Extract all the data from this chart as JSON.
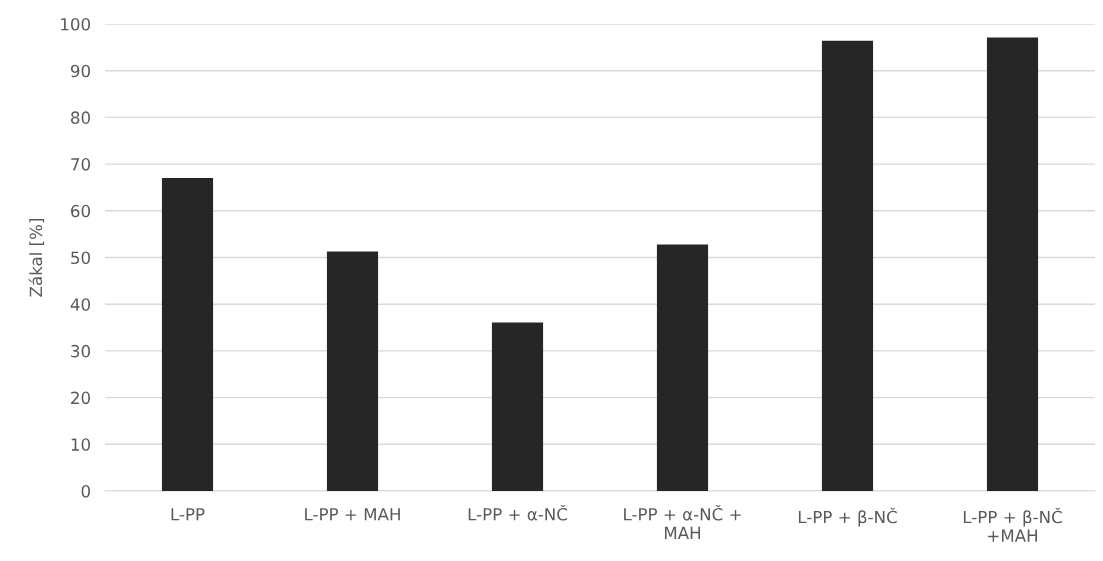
{
  "chart_data": {
    "type": "bar",
    "ylabel": "Zákal [%]",
    "categories": [
      "L-PP",
      "L-PP + MAH",
      "L-PP + α-NČ",
      "L-PP + α-NČ +\nMAH",
      "L-PP + β-NČ",
      "L-PP + β-NČ\n+MAH"
    ],
    "values": [
      67,
      51.3,
      36.1,
      52.8,
      96.4,
      97.1
    ],
    "color": "#262626",
    "ylim": [
      0,
      100
    ],
    "yticks": [
      0,
      10,
      20,
      30,
      40,
      50,
      60,
      70,
      80,
      90,
      100
    ],
    "grid": "y"
  }
}
